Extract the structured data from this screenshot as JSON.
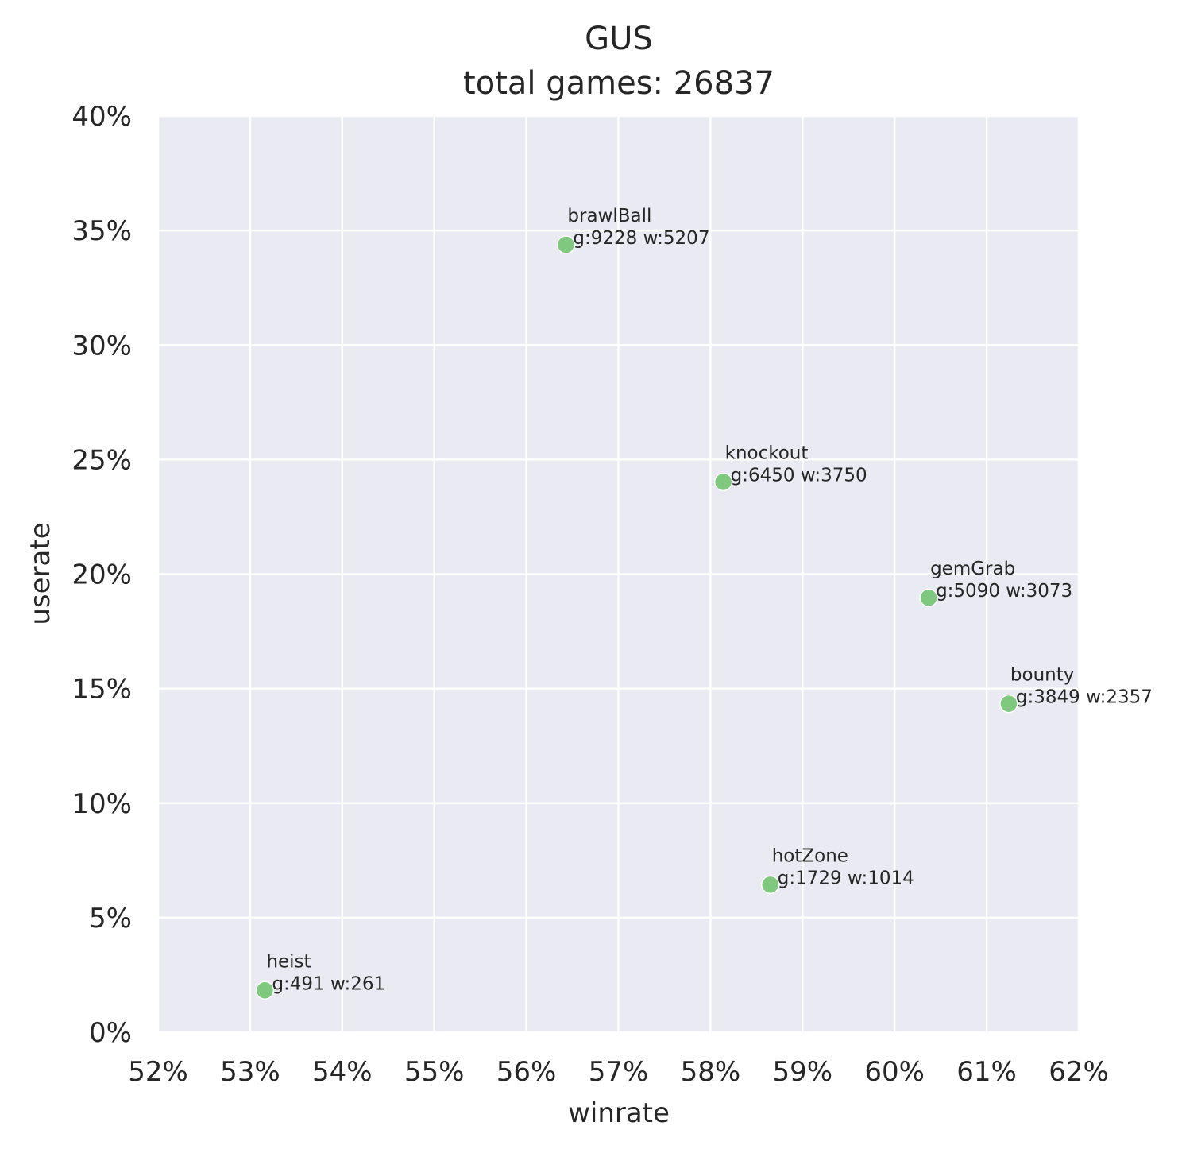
{
  "chart_data": {
    "type": "scatter",
    "title": "GUS",
    "subtitle": "total games: 26837",
    "xlabel": "winrate",
    "ylabel": "userate",
    "xlim": [
      52,
      62
    ],
    "ylim": [
      0,
      40
    ],
    "x_ticks": [
      52,
      53,
      54,
      55,
      56,
      57,
      58,
      59,
      60,
      61,
      62
    ],
    "y_ticks": [
      0,
      5,
      10,
      15,
      20,
      25,
      30,
      35,
      40
    ],
    "x_tick_labels": [
      "52%",
      "53%",
      "54%",
      "55%",
      "56%",
      "57%",
      "58%",
      "59%",
      "60%",
      "61%",
      "62%"
    ],
    "y_tick_labels": [
      "0%",
      "5%",
      "10%",
      "15%",
      "20%",
      "25%",
      "30%",
      "35%",
      "40%"
    ],
    "grid": true,
    "colors": {
      "background": "#eaeaf2",
      "grid": "#ffffff",
      "point": "#7fc97f"
    },
    "points": [
      {
        "name": "brawlBall",
        "stats": "g:9228 w:5207",
        "x": 56.43,
        "y": 34.38
      },
      {
        "name": "knockout",
        "stats": "g:6450 w:3750",
        "x": 58.14,
        "y": 24.03
      },
      {
        "name": "gemGrab",
        "stats": "g:5090 w:3073",
        "x": 60.37,
        "y": 18.97
      },
      {
        "name": "bounty",
        "stats": "g:3849 w:2357",
        "x": 61.24,
        "y": 14.34
      },
      {
        "name": "hotZone",
        "stats": "g:1729 w:1014",
        "x": 58.65,
        "y": 6.44
      },
      {
        "name": "heist",
        "stats": "g:491 w:261",
        "x": 53.16,
        "y": 1.83
      }
    ]
  }
}
